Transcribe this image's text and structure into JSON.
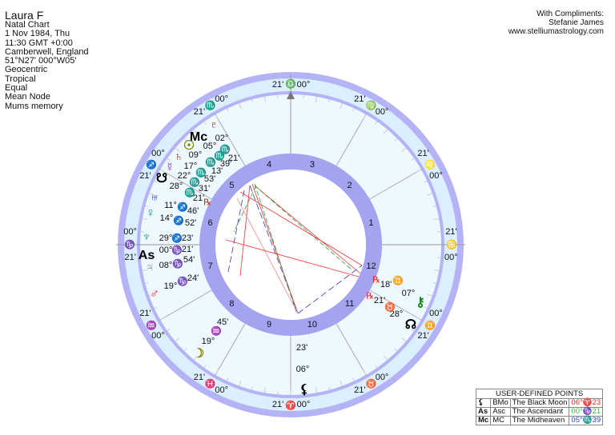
{
  "info": {
    "name": "Laura F",
    "lines": [
      "Natal Chart",
      "1 Nov 1984, Thu",
      "11:30  GMT +0:00",
      "Camberwell, England",
      "51°N27' 000°W05'",
      "Geocentric",
      "Tropical",
      "Equal",
      "Mean Node",
      "Mums memory"
    ]
  },
  "compliments": {
    "lines": [
      "With Compliments:",
      "Stefanie James",
      "www.stelliumastrology.com"
    ]
  },
  "colors": {
    "outer_ring": "#b3b3f5",
    "ring_fill": "#dcefff",
    "inner_fill": "#eef8ff",
    "house_ring": "#a3a3f0"
  },
  "cusps": [
    {
      "deg": "00°",
      "sign": "♑",
      "min": "21'",
      "color": "#22cc22"
    },
    {
      "deg": "00°",
      "sign": "♒",
      "min": "21'",
      "color": "#22aaaa"
    },
    {
      "deg": "00°",
      "sign": "♓",
      "min": "21'",
      "color": "#2244ff"
    },
    {
      "deg": "00°",
      "sign": "♈",
      "min": "21'",
      "color": "#ee2222"
    },
    {
      "deg": "00°",
      "sign": "♉",
      "min": "21'",
      "color": "#22cc22"
    },
    {
      "deg": "00°",
      "sign": "♊",
      "min": "21'",
      "color": "#22aaaa"
    },
    {
      "deg": "00°",
      "sign": "♋",
      "min": "21'",
      "color": "#2244ff"
    },
    {
      "deg": "00°",
      "sign": "♌",
      "min": "21'",
      "color": "#ee2222"
    },
    {
      "deg": "00°",
      "sign": "♍",
      "min": "21'",
      "color": "#22cc22"
    },
    {
      "deg": "00°",
      "sign": "♎",
      "min": "21'",
      "color": "#6688aa"
    },
    {
      "deg": "00°",
      "sign": "♏",
      "min": "21'",
      "color": "#2244ff"
    },
    {
      "deg": "00°",
      "sign": "♐",
      "min": "21'",
      "color": "#ee2222"
    }
  ],
  "houses": [
    "1",
    "2",
    "3",
    "4",
    "5",
    "6",
    "7",
    "8",
    "9",
    "10",
    "11",
    "12"
  ],
  "planets": [
    {
      "name": "Pluto",
      "glyph": "♇",
      "deg": "02°",
      "sign": "♏",
      "min": "21'",
      "color": "#993322",
      "sc": "#2244ff"
    },
    {
      "name": "MC",
      "glyph": "Mc",
      "deg": "05°",
      "sign": "♏",
      "min": "39'",
      "color": "#000",
      "sc": "#2244ff"
    },
    {
      "name": "Sun",
      "glyph": "☉",
      "deg": "09°",
      "sign": "♏",
      "min": "13'",
      "color": "#888800",
      "sc": "#2244ff"
    },
    {
      "name": "Saturn",
      "glyph": "♄",
      "deg": "17°",
      "sign": "♏",
      "min": "53'",
      "color": "#993322",
      "sc": "#2244ff"
    },
    {
      "name": "Mercury",
      "glyph": "☿",
      "deg": "22°",
      "sign": "♏",
      "min": "31'",
      "color": "#993399",
      "sc": "#2244ff"
    },
    {
      "name": "South Node",
      "glyph": "☋",
      "deg": "28°",
      "sign": "♏",
      "min": "21'",
      "retro": "℞",
      "color": "#000",
      "sc": "#2244ff"
    },
    {
      "name": "Uranus",
      "glyph": "♅",
      "deg": "11°",
      "sign": "♐",
      "min": "46'",
      "color": "#2244ff",
      "sc": "#ee2222"
    },
    {
      "name": "Venus",
      "glyph": "♀",
      "deg": "14°",
      "sign": "♐",
      "min": "52'",
      "color": "#119988",
      "sc": "#ee2222"
    },
    {
      "name": "Neptune",
      "glyph": "♆",
      "deg": "29°",
      "sign": "♐",
      "min": "23'",
      "color": "#119988",
      "sc": "#ee2222"
    },
    {
      "name": "Ascendant",
      "glyph": "As",
      "deg": "00°",
      "sign": "♑",
      "min": "21'",
      "color": "#000",
      "sc": "#22cc22"
    },
    {
      "name": "Jupiter",
      "glyph": "♃",
      "deg": "08°",
      "sign": "♑",
      "min": "54'",
      "color": "#888",
      "sc": "#22cc22"
    },
    {
      "name": "Mars",
      "glyph": "♂",
      "deg": "19°",
      "sign": "♑",
      "min": "24'",
      "color": "#ee2222",
      "sc": "#22cc22"
    },
    {
      "name": "Moon",
      "glyph": "☽",
      "deg": "19°",
      "sign": "♒",
      "min": "45'",
      "color": "#888800",
      "sc": "#22aaaa"
    },
    {
      "name": "Black Moon",
      "glyph": "⚸",
      "deg": "06°",
      "sign": "♈",
      "min": "23'",
      "color": "#000",
      "sc": "#ee2222"
    },
    {
      "name": "Chiron",
      "glyph": "⚷",
      "deg": "07°",
      "sign": "♊",
      "min": "18'",
      "retro": "℞",
      "color": "#118811",
      "sc": "#22aaaa"
    },
    {
      "name": "North Node",
      "glyph": "☊",
      "deg": "28°",
      "sign": "♉",
      "min": "21'",
      "retro": "℞",
      "color": "#000",
      "sc": "#22cc22"
    }
  ],
  "user_points": {
    "title": "USER-DEFINED POINTS",
    "rows": [
      {
        "glyph": "⚸",
        "abbr": "BMo",
        "name": "The Black Moon",
        "pos": "06°♈23",
        "color": "#ee2222"
      },
      {
        "glyph": "As",
        "abbr": "Asc",
        "name": "The Ascendant",
        "pos": "00°♑21",
        "color": "#22cc22"
      },
      {
        "glyph": "Mc",
        "abbr": "MC",
        "name": "The Midheaven",
        "pos": "05°♏39",
        "color": "#2244ff"
      }
    ]
  }
}
